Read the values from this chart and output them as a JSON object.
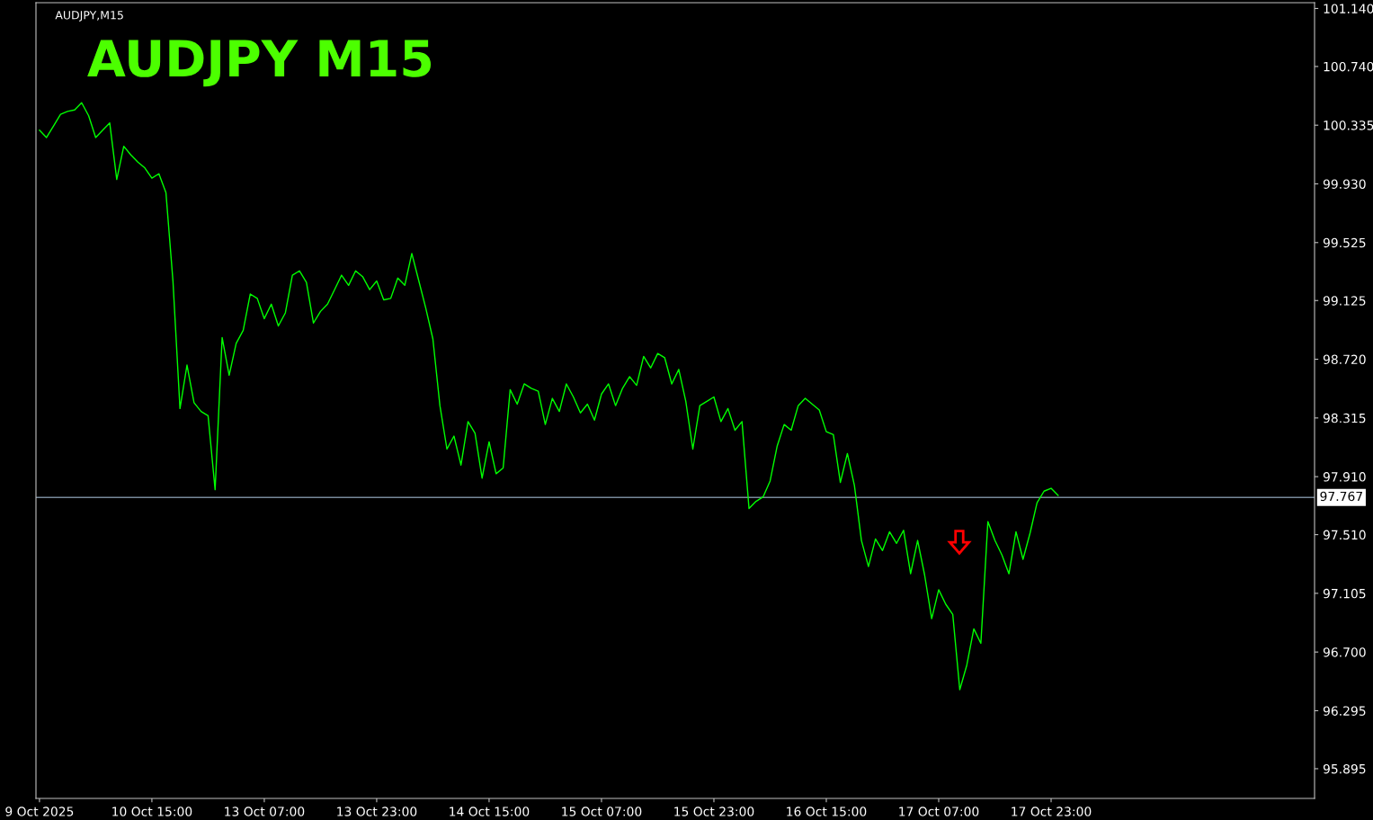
{
  "chart_data": {
    "type": "line",
    "title": "AUDJPY M15",
    "subtitle": "AUDJPY,M15",
    "categories": [
      "9 Oct 2025",
      null,
      null,
      null,
      null,
      null,
      null,
      null,
      null,
      null,
      null,
      null,
      null,
      null,
      null,
      null,
      "10 Oct 15:00",
      null,
      null,
      null,
      null,
      null,
      null,
      null,
      null,
      null,
      null,
      null,
      null,
      null,
      null,
      null,
      "13 Oct 07:00",
      null,
      null,
      null,
      null,
      null,
      null,
      null,
      null,
      null,
      null,
      null,
      null,
      null,
      null,
      null,
      "13 Oct 23:00",
      null,
      null,
      null,
      null,
      null,
      null,
      null,
      null,
      null,
      null,
      null,
      null,
      null,
      null,
      null,
      "14 Oct 15:00",
      null,
      null,
      null,
      null,
      null,
      null,
      null,
      null,
      null,
      null,
      null,
      null,
      null,
      null,
      null,
      "15 Oct 07:00",
      null,
      null,
      null,
      null,
      null,
      null,
      null,
      null,
      null,
      null,
      null,
      null,
      null,
      null,
      null,
      "15 Oct 23:00",
      null,
      null,
      null,
      null,
      null,
      null,
      null,
      null,
      null,
      null,
      null,
      null,
      null,
      null,
      null,
      "16 Oct 15:00",
      null,
      null,
      null,
      null,
      null,
      null,
      null,
      null,
      null,
      null,
      null,
      null,
      null,
      null,
      null,
      "17 Oct 07:00",
      null,
      null,
      null,
      null,
      null,
      null,
      null,
      null,
      null,
      null,
      null,
      null,
      null,
      null,
      null,
      "17 Oct 23:00",
      null,
      null,
      null,
      null,
      null,
      null,
      null,
      null,
      null,
      null,
      null,
      null,
      null,
      null,
      null,
      null,
      null,
      null,
      null,
      null,
      null,
      null,
      null,
      null,
      null,
      null,
      null,
      null,
      null,
      null,
      null,
      null,
      null,
      null,
      null,
      null,
      null
    ],
    "series": [
      {
        "color": "#00ff00",
        "values": [
          100.3,
          100.25,
          100.33,
          100.41,
          100.43,
          100.44,
          100.49,
          100.4,
          100.25,
          100.3,
          100.35,
          99.96,
          100.19,
          100.13,
          100.08,
          100.04,
          99.97,
          100.0,
          99.87,
          99.26,
          98.38,
          98.68,
          98.42,
          98.36,
          98.33,
          97.82,
          98.87,
          98.61,
          98.83,
          98.92,
          99.17,
          99.14,
          99.0,
          99.1,
          98.95,
          99.04,
          99.3,
          99.33,
          99.25,
          98.97,
          99.05,
          99.1,
          99.2,
          99.3,
          99.23,
          99.33,
          99.29,
          99.2,
          99.26,
          99.13,
          99.14,
          99.28,
          99.23,
          99.45,
          99.26,
          99.07,
          98.86,
          98.4,
          98.1,
          98.19,
          97.99,
          98.29,
          98.21,
          97.9,
          98.15,
          97.93,
          97.97,
          98.51,
          98.41,
          98.55,
          98.52,
          98.5,
          98.27,
          98.45,
          98.36,
          98.55,
          98.46,
          98.35,
          98.41,
          98.3,
          98.48,
          98.55,
          98.4,
          98.52,
          98.6,
          98.54,
          98.74,
          98.66,
          98.76,
          98.73,
          98.55,
          98.65,
          98.43,
          98.1,
          98.4,
          98.43,
          98.46,
          98.29,
          98.38,
          98.23,
          98.29,
          97.69,
          97.74,
          97.77,
          97.88,
          98.12,
          98.27,
          98.23,
          98.4,
          98.45,
          98.41,
          98.37,
          98.22,
          98.2,
          97.87,
          98.07,
          97.85,
          97.47,
          97.29,
          97.48,
          97.4,
          97.53,
          97.45,
          97.54,
          97.24,
          97.47,
          97.23,
          96.93,
          97.13,
          97.03,
          96.96,
          96.44,
          96.61,
          96.86,
          96.76,
          97.6,
          97.47,
          97.37,
          97.24,
          97.53,
          97.34,
          97.52,
          97.73,
          97.81,
          97.83,
          97.78,
          null,
          null,
          null,
          null,
          null,
          null,
          null,
          null,
          null,
          null,
          null,
          null,
          null,
          null,
          null,
          null,
          null,
          null,
          null,
          null,
          null,
          null,
          null,
          null,
          null,
          null,
          null,
          null,
          null,
          null,
          null,
          null,
          null,
          null,
          null,
          null
        ]
      }
    ],
    "ylim": [
      95.69,
      101.18
    ],
    "yticks": [
      {
        "value": 101.14,
        "label": "101.140"
      },
      {
        "value": 100.74,
        "label": "100.740"
      },
      {
        "value": 100.335,
        "label": "100.335"
      },
      {
        "value": 99.93,
        "label": "99.930"
      },
      {
        "value": 99.525,
        "label": "99.525"
      },
      {
        "value": 99.125,
        "label": "99.125"
      },
      {
        "value": 98.72,
        "label": "98.720"
      },
      {
        "value": 98.315,
        "label": "98.315"
      },
      {
        "value": 97.91,
        "label": "97.910"
      },
      {
        "value": 97.51,
        "label": "97.510"
      },
      {
        "value": 97.105,
        "label": "97.105"
      },
      {
        "value": 96.7,
        "label": "96.700"
      },
      {
        "value": 96.295,
        "label": "96.295"
      },
      {
        "value": 95.895,
        "label": "95.895"
      }
    ],
    "ref_lines": [
      {
        "axis": "y",
        "value": 97.767,
        "label": "97.767",
        "color": "#778899",
        "line_style": "solid"
      }
    ],
    "grid": false,
    "legend": false,
    "marker": "none",
    "line_style": "solid"
  }
}
